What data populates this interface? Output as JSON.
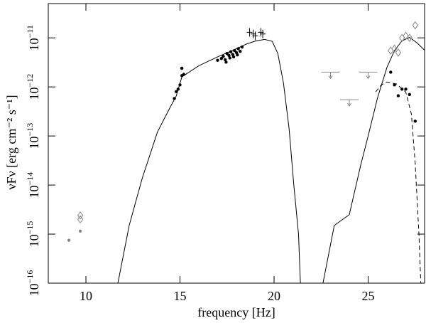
{
  "chart_data": {
    "type": "sed",
    "xlabel": "frequency [Hz]",
    "ylabel": "νFν [erg cm⁻² s⁻¹]",
    "xlim": [
      8,
      28
    ],
    "xticks": [
      10,
      15,
      20,
      25
    ],
    "ylim": [
      1e-16,
      5e-11
    ],
    "log_y": true,
    "yticks": [
      {
        "value": 1e-16,
        "label": "10",
        "exponent": "−16"
      },
      {
        "value": 1e-15,
        "label": "10",
        "exponent": "−15"
      },
      {
        "value": 1e-14,
        "label": "10",
        "exponent": "−14"
      },
      {
        "value": 1e-13,
        "label": "10",
        "exponent": "−13"
      },
      {
        "value": 1e-12,
        "label": "10",
        "exponent": "−12"
      },
      {
        "value": 1e-11,
        "label": "10",
        "exponent": "−11"
      }
    ],
    "series": [
      {
        "mode": "line",
        "color": "#000000",
        "dash": false,
        "x": [
          11.7,
          12.3,
          13,
          13.8,
          14.5,
          14.8,
          15.1,
          16,
          17,
          18,
          18.5,
          19,
          19.5,
          19.9,
          20.2,
          20.5,
          20.8,
          21.05,
          21.3,
          21.4
        ],
        "values": [
          1e-16,
          1.5e-15,
          1.4e-14,
          1.2e-13,
          4e-13,
          6.5e-13,
          1.6e-12,
          2.7e-12,
          4.1e-12,
          6e-12,
          7.4e-12,
          8.6e-12,
          9.3e-12,
          8.5e-12,
          4.8e-12,
          1.2e-12,
          1.4e-13,
          1e-14,
          1e-15,
          1e-16
        ]
      },
      {
        "mode": "line",
        "color": "#000000",
        "dash": false,
        "x": [
          22.6,
          23.2,
          24,
          24.6,
          25,
          25.5,
          26,
          26.4,
          26.8,
          27.2,
          27.6,
          28
        ],
        "values": [
          1e-16,
          1.5e-15,
          2.5e-15,
          2.5e-14,
          1e-13,
          6e-13,
          2.5e-12,
          5.5e-12,
          8.7e-12,
          1.02e-11,
          7.9e-12,
          5.6e-12
        ]
      },
      {
        "mode": "line",
        "color": "#000000",
        "dash": true,
        "x": [
          25.4,
          25.7,
          26,
          26.5,
          27,
          27.3,
          27.5,
          27.7,
          27.8
        ],
        "values": [
          7.9e-13,
          1.1e-12,
          1.26e-12,
          1.15e-12,
          7.9e-13,
          2.8e-13,
          2.8e-14,
          1e-15,
          1e-16
        ]
      },
      {
        "mode": "dot",
        "color": "#000000",
        "x": [
          14.7,
          14.8,
          14.9,
          15.0,
          15.1,
          15.1,
          15.2,
          17.0,
          17.2,
          17.3,
          17.4,
          17.5,
          17.6,
          17.7,
          17.8,
          17.9,
          18.0,
          18.1,
          18.2,
          18.3,
          17.45,
          17.65,
          17.85,
          18.05,
          26.2,
          26.4,
          26.6,
          26.8,
          27.0,
          27.2,
          27.5
        ],
        "values": [
          5.8e-13,
          8e-13,
          9e-13,
          1.1e-12,
          1.7e-12,
          2.4e-12,
          1.8e-12,
          3.5e-12,
          3.8e-12,
          4.2e-12,
          3.6e-12,
          4.8e-12,
          4.4e-12,
          5.2e-12,
          4.6e-12,
          5.5e-12,
          5e-12,
          6e-12,
          5.3e-12,
          6.5e-12,
          3.2e-12,
          3.9e-12,
          4.1e-12,
          4.5e-12,
          2e-12,
          1.1e-12,
          6.6e-13,
          9e-13,
          9e-13,
          7e-13,
          2e-13
        ]
      },
      {
        "mode": "dot",
        "color": "#888888",
        "x": [
          9.1,
          9.7
        ],
        "values": [
          7.5e-16,
          1.15e-15
        ]
      },
      {
        "mode": "diamond",
        "color": "#888888",
        "x": [
          9.7,
          9.7,
          26.2,
          26.4,
          26.6,
          26.8,
          27.0,
          27.2,
          27.5
        ],
        "values": [
          2e-15,
          2.4e-15,
          5.5e-12,
          6e-12,
          5e-12,
          1e-11,
          1.1e-11,
          1e-11,
          1.8e-11
        ]
      },
      {
        "mode": "cross",
        "color": "#000000",
        "x": [
          18.7,
          18.9,
          19.0,
          19.3,
          19.4
        ],
        "values": [
          1.3e-11,
          1.2e-11,
          1.1e-11,
          1.3e-11,
          1.2e-11
        ]
      },
      {
        "mode": "limit",
        "color": "#888888",
        "x": [
          23.0,
          24.0,
          25.0
        ],
        "values": [
          2e-12,
          5.5e-13,
          2e-12
        ]
      }
    ]
  }
}
